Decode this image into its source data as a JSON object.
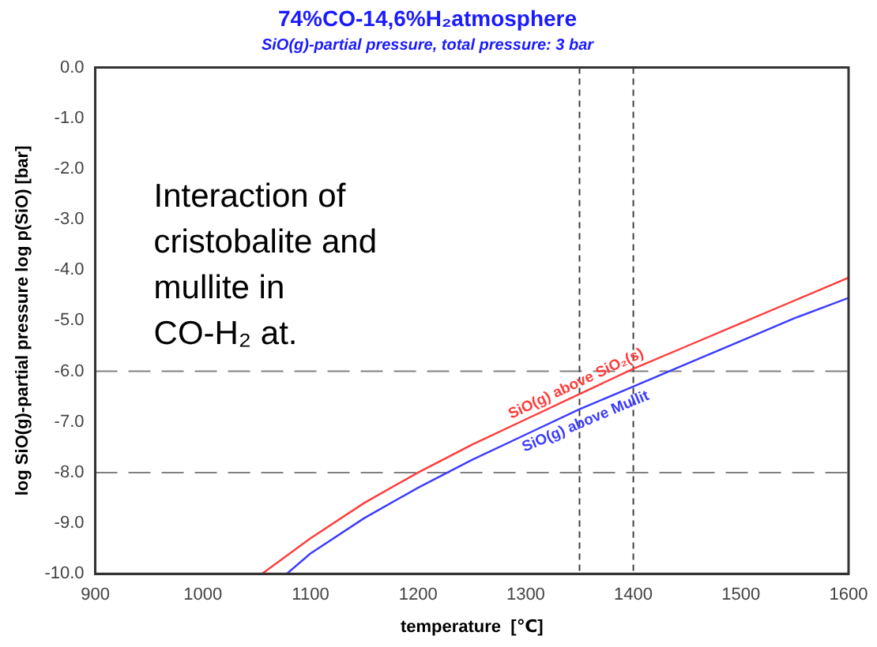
{
  "chart_data": {
    "type": "line",
    "title": "74%CO-14,6%H₂atmosphere",
    "subtitle": "SiO(g)-partial pressure, total pressure: 3 bar",
    "xlabel": "temperature  [℃]",
    "ylabel": "log SiO(g)-partial pressure log p(SiO) [bar]",
    "annotations": [
      "Interaction of cristobalite and mullite in CO-H₂ at."
    ],
    "xlim": [
      900,
      1600
    ],
    "xticks": [
      900,
      1000,
      1100,
      1200,
      1300,
      1400,
      1500,
      1600
    ],
    "ylim": [
      -10,
      0
    ],
    "yticks": [
      {
        "value": 0,
        "label": "0.0"
      },
      {
        "value": -1,
        "label": "-1.0"
      },
      {
        "value": -2,
        "label": "-2.0"
      },
      {
        "value": -3,
        "label": "-3.0"
      },
      {
        "value": -4,
        "label": "-4.0"
      },
      {
        "value": -5,
        "label": "-5.0"
      },
      {
        "value": -6,
        "label": "-6.0"
      },
      {
        "value": -7,
        "label": "-7.0"
      },
      {
        "value": -8,
        "label": "-8.0"
      },
      {
        "value": -9,
        "label": "-9.0"
      },
      {
        "value": -10,
        "label": "-10.0"
      }
    ],
    "grid": false,
    "legend": false,
    "marker": "none",
    "line_style": "solid",
    "ref_lines": [
      {
        "axis": "y",
        "value": -6,
        "color": "#808080",
        "line_style": "dashed"
      },
      {
        "axis": "y",
        "value": -8,
        "color": "#808080",
        "line_style": "dashed"
      },
      {
        "axis": "x",
        "value": 1350,
        "color": "#404040",
        "line_style": "dashed"
      },
      {
        "axis": "x",
        "value": 1400,
        "color": "#404040",
        "line_style": "dashed"
      }
    ],
    "series": [
      {
        "name": "SiO(g) above SiO₂(s)",
        "color": "#ff3b3b",
        "x": [
          1055,
          1100,
          1150,
          1200,
          1250,
          1300,
          1350,
          1400,
          1450,
          1500,
          1550,
          1600
        ],
        "values": [
          -10,
          -9.3,
          -8.6,
          -8.0,
          -7.45,
          -6.95,
          -6.45,
          -5.95,
          -5.5,
          -5.05,
          -4.6,
          -4.15
        ]
      },
      {
        "name": "SiO(g) above Mullit",
        "color": "#3b3bff",
        "x": [
          1078,
          1100,
          1150,
          1200,
          1250,
          1300,
          1350,
          1400,
          1450,
          1500,
          1550,
          1600
        ],
        "values": [
          -10,
          -9.6,
          -8.9,
          -8.3,
          -7.75,
          -7.25,
          -6.75,
          -6.3,
          -5.85,
          -5.4,
          -4.95,
          -4.55
        ]
      }
    ]
  }
}
